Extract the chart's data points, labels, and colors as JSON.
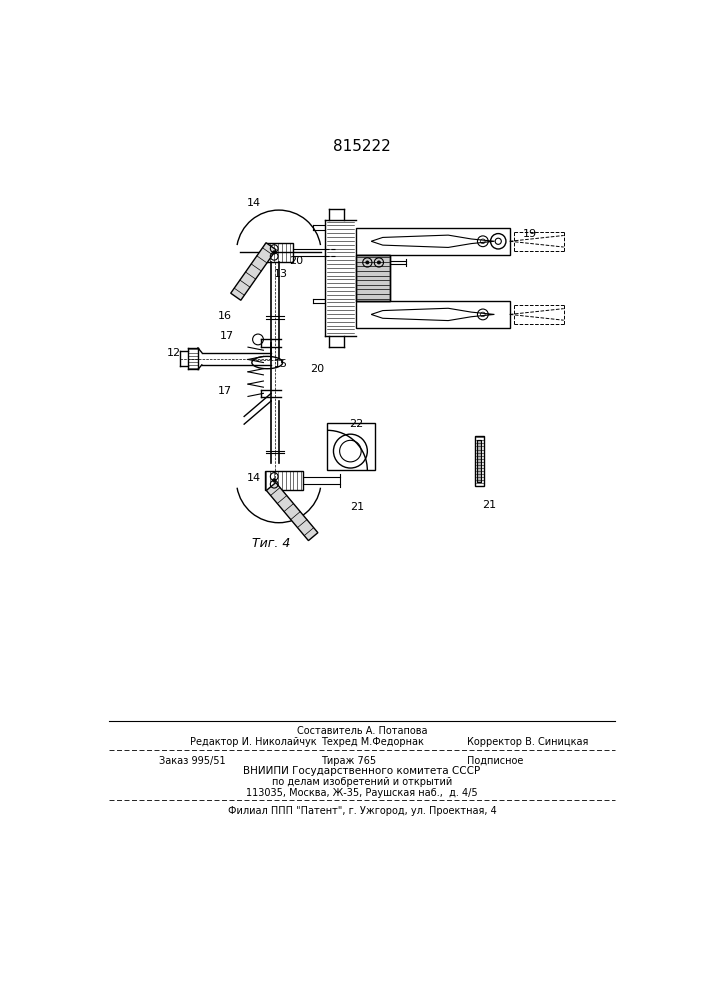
{
  "patent_number": "815222",
  "fig_label": "Τиг. 4",
  "background_color": "#ffffff",
  "line_color": "#000000",
  "footer_line1": "Составитель А. Потапова",
  "footer_line2_left": "Редактор И. Николайчук",
  "footer_line2_mid": "Техред М.Федорнак",
  "footer_line2_right": "Корректор В. Синицкая",
  "footer_line3_left": "Заказ 995/51",
  "footer_line3_mid": "Тираж 765",
  "footer_line3_right": "Подписное",
  "footer_line4": "ВНИИПИ Государственного комитета СССР",
  "footer_line5": "по делам изобретений и открытий",
  "footer_line6": "113035, Москва, Ж-35, Раушская наб.,  д. 4/5",
  "footer_line7": "Филиал ППП \"Патент\", г. Ужгород, ул. Проектная, 4"
}
